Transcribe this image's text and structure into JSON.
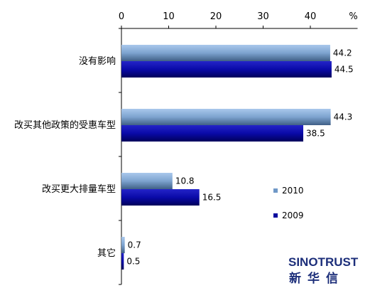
{
  "chart_data": {
    "type": "bar",
    "orientation": "horizontal",
    "unit": "%",
    "categories": [
      "没有影响",
      "改买其他政策的受惠车型",
      "改买更大排量车型",
      "其它"
    ],
    "series": [
      {
        "name": "2010",
        "values": [
          44.2,
          44.3,
          10.8,
          0.7
        ],
        "color": "#6f98c7"
      },
      {
        "name": "2009",
        "values": [
          44.5,
          38.5,
          16.5,
          0.5
        ],
        "color": "#0a0a9e"
      }
    ],
    "xlim": [
      0,
      50
    ],
    "xticks": [
      0,
      10,
      20,
      30,
      40
    ],
    "grid": false,
    "legend_position": "right"
  },
  "brand": {
    "english": "SINOTRUST",
    "chinese": "新华信"
  }
}
